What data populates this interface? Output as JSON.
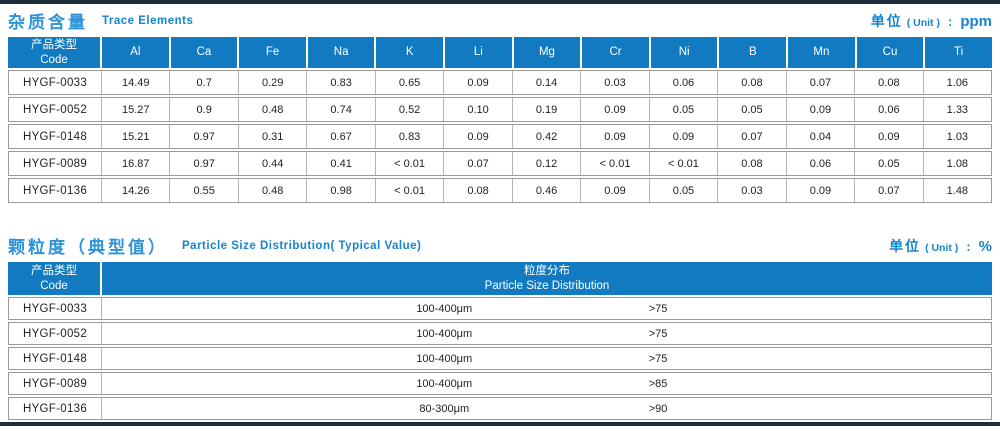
{
  "page": {
    "accent_blue": "#1584d0",
    "header_bg": "#117ac1",
    "bar_color": "#1e2b38"
  },
  "trace_table": {
    "title_zh": "杂质含量",
    "title_en": "Trace Elements",
    "unit_zh": "单位",
    "unit_en": "( Unit )",
    "unit_colon": ":",
    "unit_value": "ppm",
    "code_header_zh": "产品类型",
    "code_header_en": "Code",
    "columns": [
      "Al",
      "Ca",
      "Fe",
      "Na",
      "K",
      "Li",
      "Mg",
      "Cr",
      "Ni",
      "B",
      "Mn",
      "Cu",
      "Ti"
    ],
    "rows": [
      {
        "code": "HYGF-0033",
        "values": [
          "14.49",
          "0.7",
          "0.29",
          "0.83",
          "0.65",
          "0.09",
          "0.14",
          "0.03",
          "0.06",
          "0.08",
          "0.07",
          "0.08",
          "1.06"
        ]
      },
      {
        "code": "HYGF-0052",
        "values": [
          "15.27",
          "0.9",
          "0.48",
          "0.74",
          "0.52",
          "0.10",
          "0.19",
          "0.09",
          "0.05",
          "0.05",
          "0.09",
          "0.06",
          "1.33"
        ]
      },
      {
        "code": "HYGF-0148",
        "values": [
          "15.21",
          "0.97",
          "0.31",
          "0.67",
          "0.83",
          "0.09",
          "0.42",
          "0.09",
          "0.09",
          "0.07",
          "0.04",
          "0.09",
          "1.03"
        ]
      },
      {
        "code": "HYGF-0089",
        "values": [
          "16.87",
          "0.97",
          "0.44",
          "0.41",
          "< 0.01",
          "0.07",
          "0.12",
          "< 0.01",
          "< 0.01",
          "0.08",
          "0.06",
          "0.05",
          "1.08"
        ]
      },
      {
        "code": "HYGF-0136",
        "values": [
          "14.26",
          "0.55",
          "0.48",
          "0.98",
          "< 0.01",
          "0.08",
          "0.46",
          "0.09",
          "0.05",
          "0.03",
          "0.09",
          "0.07",
          "1.48"
        ]
      }
    ]
  },
  "particle_table": {
    "title_zh": "颗粒度（典型值）",
    "title_en": "Particle Size Distribution( Typical Value)",
    "unit_zh": "单位",
    "unit_en": "( Unit )",
    "unit_colon": ":",
    "unit_value": "%",
    "code_header_zh": "产品类型",
    "code_header_en": "Code",
    "dist_header_zh": "粒度分布",
    "dist_header_en": "Particle Size Distribution",
    "rows": [
      {
        "code": "HYGF-0033",
        "size": "100-400μm",
        "percent": ">75"
      },
      {
        "code": "HYGF-0052",
        "size": "100-400μm",
        "percent": ">75"
      },
      {
        "code": "HYGF-0148",
        "size": "100-400μm",
        "percent": ">75"
      },
      {
        "code": "HYGF-0089",
        "size": "100-400μm",
        "percent": ">85"
      },
      {
        "code": "HYGF-0136",
        "size": "80-300μm",
        "percent": ">90"
      }
    ]
  }
}
